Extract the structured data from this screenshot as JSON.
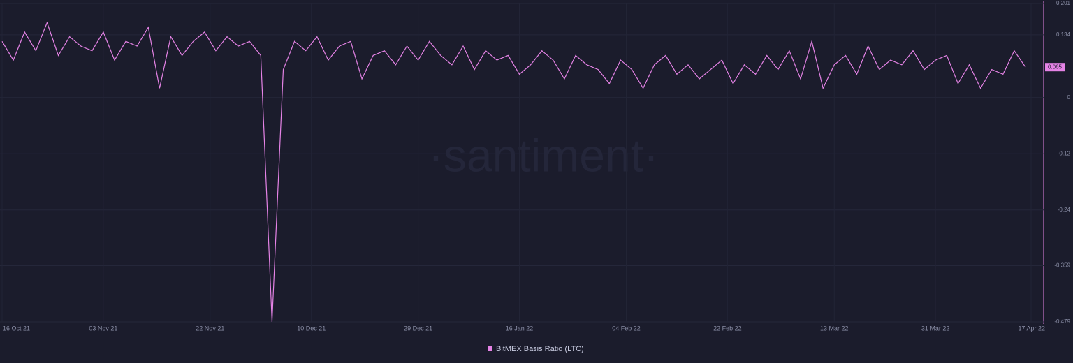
{
  "chart_data": {
    "type": "line",
    "watermark": "·santiment·",
    "x": [
      "2021-10-16",
      "2021-10-18",
      "2021-10-20",
      "2021-10-22",
      "2021-10-24",
      "2021-10-26",
      "2021-10-28",
      "2021-10-30",
      "2021-11-01",
      "2021-11-03",
      "2021-11-05",
      "2021-11-07",
      "2021-11-09",
      "2021-11-11",
      "2021-11-13",
      "2021-11-15",
      "2021-11-17",
      "2021-11-19",
      "2021-11-21",
      "2021-11-23",
      "2021-11-25",
      "2021-11-27",
      "2021-11-29",
      "2021-12-01",
      "2021-12-03",
      "2021-12-05",
      "2021-12-07",
      "2021-12-09",
      "2021-12-11",
      "2021-12-13",
      "2021-12-15",
      "2021-12-17",
      "2021-12-19",
      "2021-12-21",
      "2021-12-23",
      "2021-12-25",
      "2021-12-27",
      "2021-12-29",
      "2021-12-31",
      "2022-01-02",
      "2022-01-04",
      "2022-01-06",
      "2022-01-08",
      "2022-01-10",
      "2022-01-12",
      "2022-01-14",
      "2022-01-16",
      "2022-01-18",
      "2022-01-20",
      "2022-01-22",
      "2022-01-24",
      "2022-01-26",
      "2022-01-28",
      "2022-01-30",
      "2022-02-01",
      "2022-02-03",
      "2022-02-05",
      "2022-02-07",
      "2022-02-09",
      "2022-02-11",
      "2022-02-13",
      "2022-02-15",
      "2022-02-17",
      "2022-02-19",
      "2022-02-21",
      "2022-02-23",
      "2022-02-25",
      "2022-02-27",
      "2022-03-01",
      "2022-03-03",
      "2022-03-05",
      "2022-03-07",
      "2022-03-09",
      "2022-03-11",
      "2022-03-13",
      "2022-03-15",
      "2022-03-17",
      "2022-03-19",
      "2022-03-21",
      "2022-03-23",
      "2022-03-25",
      "2022-03-27",
      "2022-03-29",
      "2022-03-31",
      "2022-04-02",
      "2022-04-04",
      "2022-04-06",
      "2022-04-08",
      "2022-04-10",
      "2022-04-12",
      "2022-04-14",
      "2022-04-16"
    ],
    "series": [
      {
        "name": "BitMEX Basis Ratio (LTC)",
        "color": "#e583e6",
        "values": [
          0.12,
          0.08,
          0.14,
          0.1,
          0.16,
          0.09,
          0.13,
          0.11,
          0.1,
          0.14,
          0.08,
          0.12,
          0.11,
          0.15,
          0.02,
          0.13,
          0.09,
          0.12,
          0.14,
          0.1,
          0.13,
          0.11,
          0.12,
          0.09,
          -0.479,
          0.06,
          0.12,
          0.1,
          0.13,
          0.08,
          0.11,
          0.12,
          0.04,
          0.09,
          0.1,
          0.07,
          0.11,
          0.08,
          0.12,
          0.09,
          0.07,
          0.11,
          0.06,
          0.1,
          0.08,
          0.09,
          0.05,
          0.07,
          0.1,
          0.08,
          0.04,
          0.09,
          0.07,
          0.06,
          0.03,
          0.08,
          0.06,
          0.02,
          0.07,
          0.09,
          0.05,
          0.07,
          0.04,
          0.06,
          0.08,
          0.03,
          0.07,
          0.05,
          0.09,
          0.06,
          0.1,
          0.04,
          0.12,
          0.02,
          0.07,
          0.09,
          0.05,
          0.11,
          0.06,
          0.08,
          0.07,
          0.1,
          0.06,
          0.08,
          0.09,
          0.03,
          0.07,
          0.02,
          0.06,
          0.05,
          0.1,
          0.065
        ]
      }
    ],
    "xlim": [
      "2021-10-16",
      "2022-04-17"
    ],
    "xticks": [
      {
        "value": "2021-10-16",
        "label": "16 Oct 21"
      },
      {
        "value": "2021-11-03",
        "label": "03 Nov 21"
      },
      {
        "value": "2021-11-22",
        "label": "22 Nov 21"
      },
      {
        "value": "2021-12-10",
        "label": "10 Dec 21"
      },
      {
        "value": "2021-12-29",
        "label": "29 Dec 21"
      },
      {
        "value": "2022-01-16",
        "label": "16 Jan 22"
      },
      {
        "value": "2022-02-04",
        "label": "04 Feb 22"
      },
      {
        "value": "2022-02-22",
        "label": "22 Feb 22"
      },
      {
        "value": "2022-03-13",
        "label": "13 Mar 22"
      },
      {
        "value": "2022-03-31",
        "label": "31 Mar 22"
      },
      {
        "value": "2022-04-17",
        "label": "17 Apr 22"
      }
    ],
    "ylim": [
      -0.479,
      0.201
    ],
    "yticks": [
      0.201,
      0.134,
      0,
      -0.12,
      -0.24,
      -0.359,
      -0.479
    ],
    "grid": true
  }
}
